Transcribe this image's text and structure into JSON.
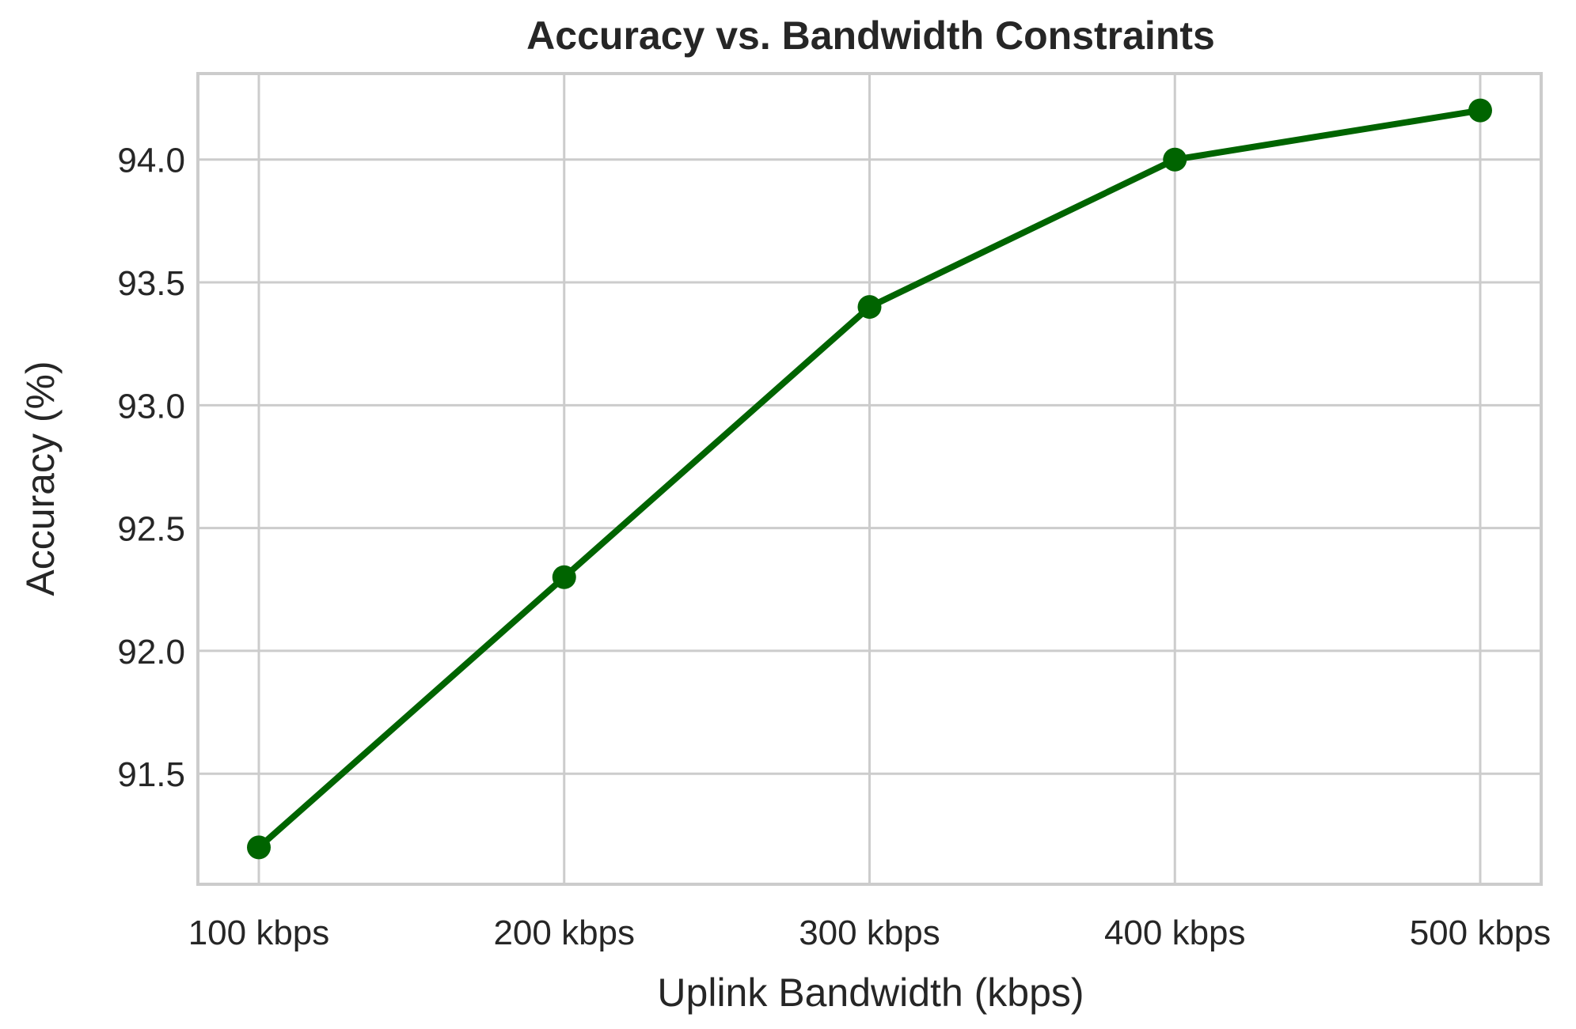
{
  "chart_data": {
    "type": "line",
    "title": "Accuracy vs. Bandwidth Constraints",
    "xlabel": "Uplink Bandwidth (kbps)",
    "ylabel": "Accuracy (%)",
    "categories": [
      "100 kbps",
      "200 kbps",
      "300 kbps",
      "400 kbps",
      "500 kbps"
    ],
    "yticks": [
      "91.5",
      "92.0",
      "92.5",
      "93.0",
      "93.5",
      "94.0"
    ],
    "ylim": [
      91.05,
      94.35
    ],
    "grid": true,
    "series": [
      {
        "values": [
          91.2,
          92.3,
          93.4,
          94.0,
          94.2
        ],
        "color": "#006400",
        "marker": "circle"
      }
    ]
  }
}
